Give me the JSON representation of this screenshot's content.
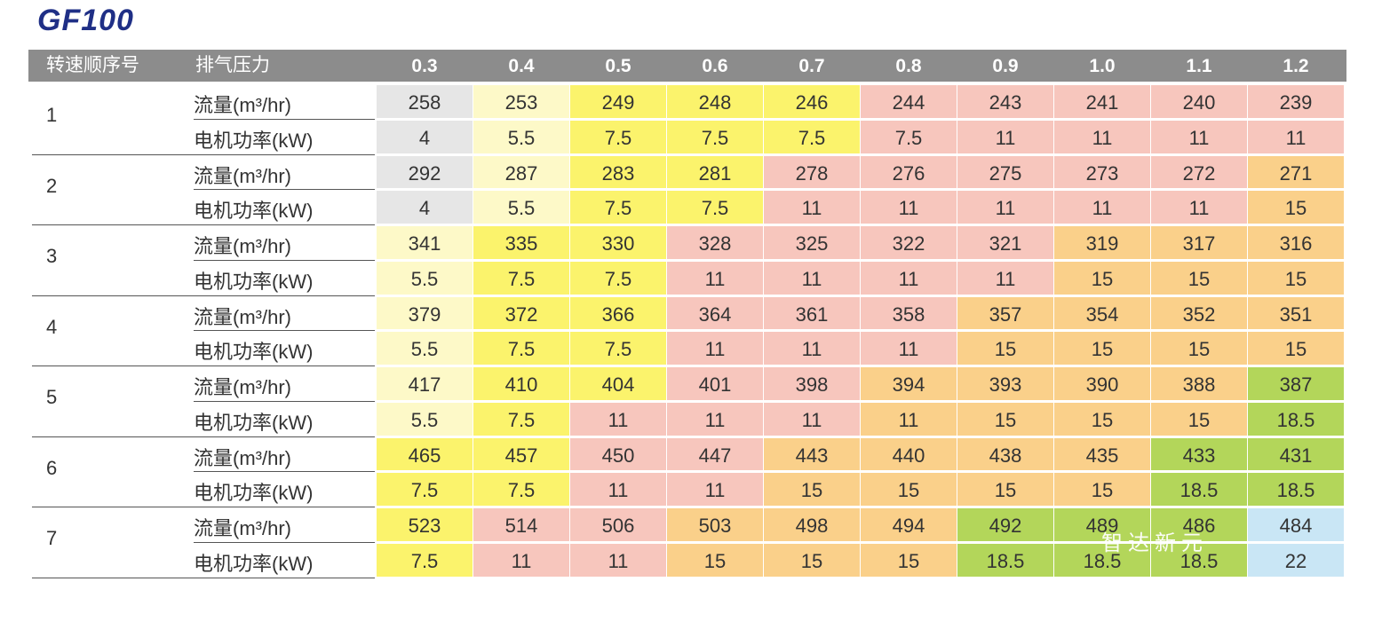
{
  "title": "GF100",
  "header": {
    "col1": "转速顺序号",
    "col2": "排气压力",
    "pressures": [
      "0.3",
      "0.4",
      "0.5",
      "0.6",
      "0.7",
      "0.8",
      "0.9",
      "1.0",
      "1.1",
      "1.2"
    ]
  },
  "labels": {
    "flow": "流量(m³/hr)",
    "power": "电机功率(kW)"
  },
  "colors": {
    "c0": "#e6e6e6",
    "c1": "#fdf9c8",
    "c2": "#fbf36c",
    "c3": "#f7c6bd",
    "c4": "#fad08a",
    "c5": "#b3d65a",
    "c6": "#c9e6f5"
  },
  "rows": [
    {
      "seq": "1",
      "flow": [
        "258",
        "253",
        "249",
        "248",
        "246",
        "244",
        "243",
        "241",
        "240",
        "239"
      ],
      "flow_color": [
        0,
        1,
        2,
        2,
        2,
        3,
        3,
        3,
        3,
        3
      ],
      "power": [
        "4",
        "5.5",
        "7.5",
        "7.5",
        "7.5",
        "7.5",
        "11",
        "11",
        "11",
        "11"
      ],
      "power_color": [
        0,
        1,
        2,
        2,
        2,
        3,
        3,
        3,
        3,
        3
      ]
    },
    {
      "seq": "2",
      "flow": [
        "292",
        "287",
        "283",
        "281",
        "278",
        "276",
        "275",
        "273",
        "272",
        "271"
      ],
      "flow_color": [
        0,
        1,
        2,
        2,
        3,
        3,
        3,
        3,
        3,
        4
      ],
      "power": [
        "4",
        "5.5",
        "7.5",
        "7.5",
        "11",
        "11",
        "11",
        "11",
        "11",
        "15"
      ],
      "power_color": [
        0,
        1,
        2,
        2,
        3,
        3,
        3,
        3,
        3,
        4
      ]
    },
    {
      "seq": "3",
      "flow": [
        "341",
        "335",
        "330",
        "328",
        "325",
        "322",
        "321",
        "319",
        "317",
        "316"
      ],
      "flow_color": [
        1,
        2,
        2,
        3,
        3,
        3,
        3,
        4,
        4,
        4
      ],
      "power": [
        "5.5",
        "7.5",
        "7.5",
        "11",
        "11",
        "11",
        "11",
        "15",
        "15",
        "15"
      ],
      "power_color": [
        1,
        2,
        2,
        3,
        3,
        3,
        3,
        4,
        4,
        4
      ]
    },
    {
      "seq": "4",
      "flow": [
        "379",
        "372",
        "366",
        "364",
        "361",
        "358",
        "357",
        "354",
        "352",
        "351"
      ],
      "flow_color": [
        1,
        2,
        2,
        3,
        3,
        3,
        4,
        4,
        4,
        4
      ],
      "power": [
        "5.5",
        "7.5",
        "7.5",
        "11",
        "11",
        "11",
        "15",
        "15",
        "15",
        "15"
      ],
      "power_color": [
        1,
        2,
        2,
        3,
        3,
        3,
        4,
        4,
        4,
        4
      ]
    },
    {
      "seq": "5",
      "flow": [
        "417",
        "410",
        "404",
        "401",
        "398",
        "394",
        "393",
        "390",
        "388",
        "387"
      ],
      "flow_color": [
        1,
        2,
        2,
        3,
        3,
        4,
        4,
        4,
        4,
        5
      ],
      "power": [
        "5.5",
        "7.5",
        "11",
        "11",
        "11",
        "11",
        "15",
        "15",
        "15",
        "18.5"
      ],
      "power_color": [
        1,
        2,
        3,
        3,
        3,
        4,
        4,
        4,
        4,
        5
      ]
    },
    {
      "seq": "6",
      "flow": [
        "465",
        "457",
        "450",
        "447",
        "443",
        "440",
        "438",
        "435",
        "433",
        "431"
      ],
      "flow_color": [
        2,
        2,
        3,
        3,
        4,
        4,
        4,
        4,
        5,
        5
      ],
      "power": [
        "7.5",
        "7.5",
        "11",
        "11",
        "15",
        "15",
        "15",
        "15",
        "18.5",
        "18.5"
      ],
      "power_color": [
        2,
        2,
        3,
        3,
        4,
        4,
        4,
        4,
        5,
        5
      ]
    },
    {
      "seq": "7",
      "flow": [
        "523",
        "514",
        "506",
        "503",
        "498",
        "494",
        "492",
        "489",
        "486",
        "484"
      ],
      "flow_color": [
        2,
        3,
        3,
        4,
        4,
        4,
        5,
        5,
        5,
        6
      ],
      "power": [
        "7.5",
        "11",
        "11",
        "15",
        "15",
        "15",
        "18.5",
        "18.5",
        "18.5",
        "22"
      ],
      "power_color": [
        2,
        3,
        3,
        4,
        4,
        4,
        5,
        5,
        5,
        6
      ]
    }
  ],
  "watermark": "智达新元"
}
